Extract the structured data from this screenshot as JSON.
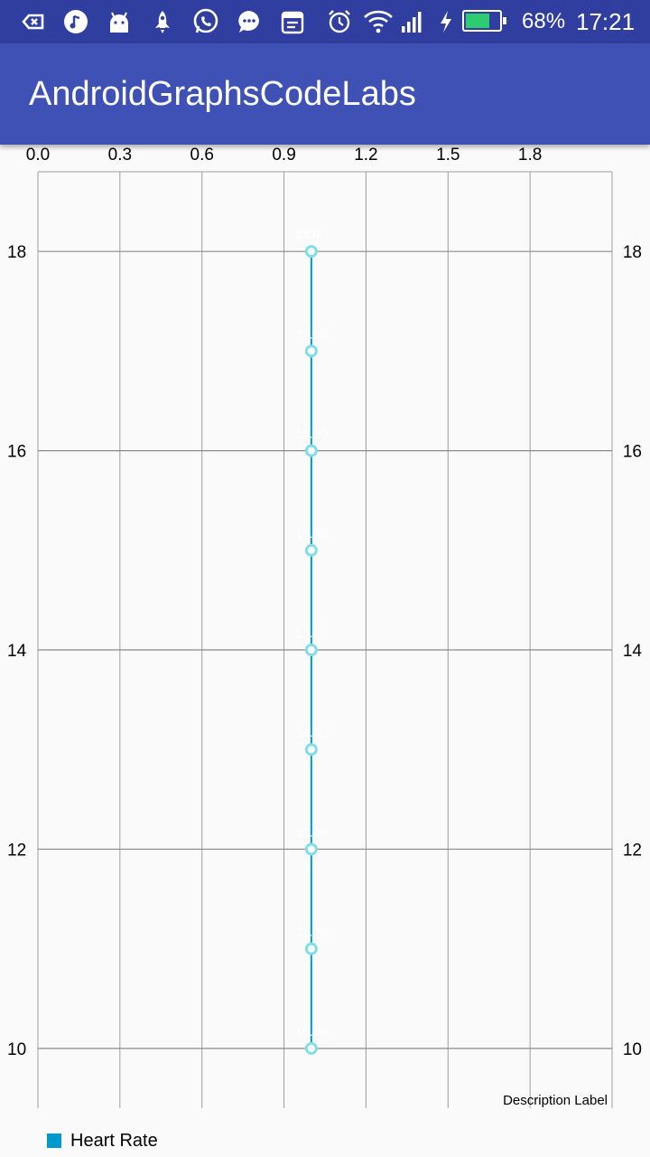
{
  "status_bar": {
    "icons": [
      "screen-cast-icon",
      "music-icon",
      "android-icon",
      "rocket-icon",
      "whatsapp-icon",
      "message-icon",
      "calendar-icon",
      "alarm-icon",
      "wifi-icon",
      "signal-icon",
      "charging-icon",
      "battery-icon"
    ],
    "battery": "68%",
    "time": "17:21",
    "battery_color": "#2ecc71"
  },
  "app_bar": {
    "title": "AndroidGraphsCodeLabs",
    "color": "#3f51b5",
    "status_color": "#303f9f"
  },
  "chart_data": {
    "type": "line",
    "title": "",
    "xlabel": "",
    "ylabel": "",
    "x_ticks": [
      "0.0",
      "0.3",
      "0.6",
      "0.9",
      "1.2",
      "1.5",
      "1.8"
    ],
    "y_ticks": [
      "10",
      "12",
      "14",
      "16",
      "18"
    ],
    "xlim": [
      0,
      2.1
    ],
    "ylim": [
      9.4,
      18.8
    ],
    "grid": true,
    "x_axis_position": "top",
    "y_axis_labels": "both sides",
    "series": [
      {
        "name": "Heart Rate",
        "color": "#0099cc",
        "point_color": "#80deea",
        "points": [
          {
            "x": 1.0,
            "y": 10
          },
          {
            "x": 1.0,
            "y": 11
          },
          {
            "x": 1.0,
            "y": 12
          },
          {
            "x": 1.0,
            "y": 13
          },
          {
            "x": 1.0,
            "y": 14
          },
          {
            "x": 1.0,
            "y": 15
          },
          {
            "x": 1.0,
            "y": 16
          },
          {
            "x": 1.0,
            "y": 17
          },
          {
            "x": 1.0,
            "y": 18
          }
        ],
        "value_labels": [
          "10.00",
          "11.00",
          "12.00",
          "13.00",
          "14.00",
          "15.00",
          "16.00",
          "17.00",
          "18.00"
        ]
      }
    ],
    "description": "Description Label",
    "legend": "bottom-left"
  }
}
